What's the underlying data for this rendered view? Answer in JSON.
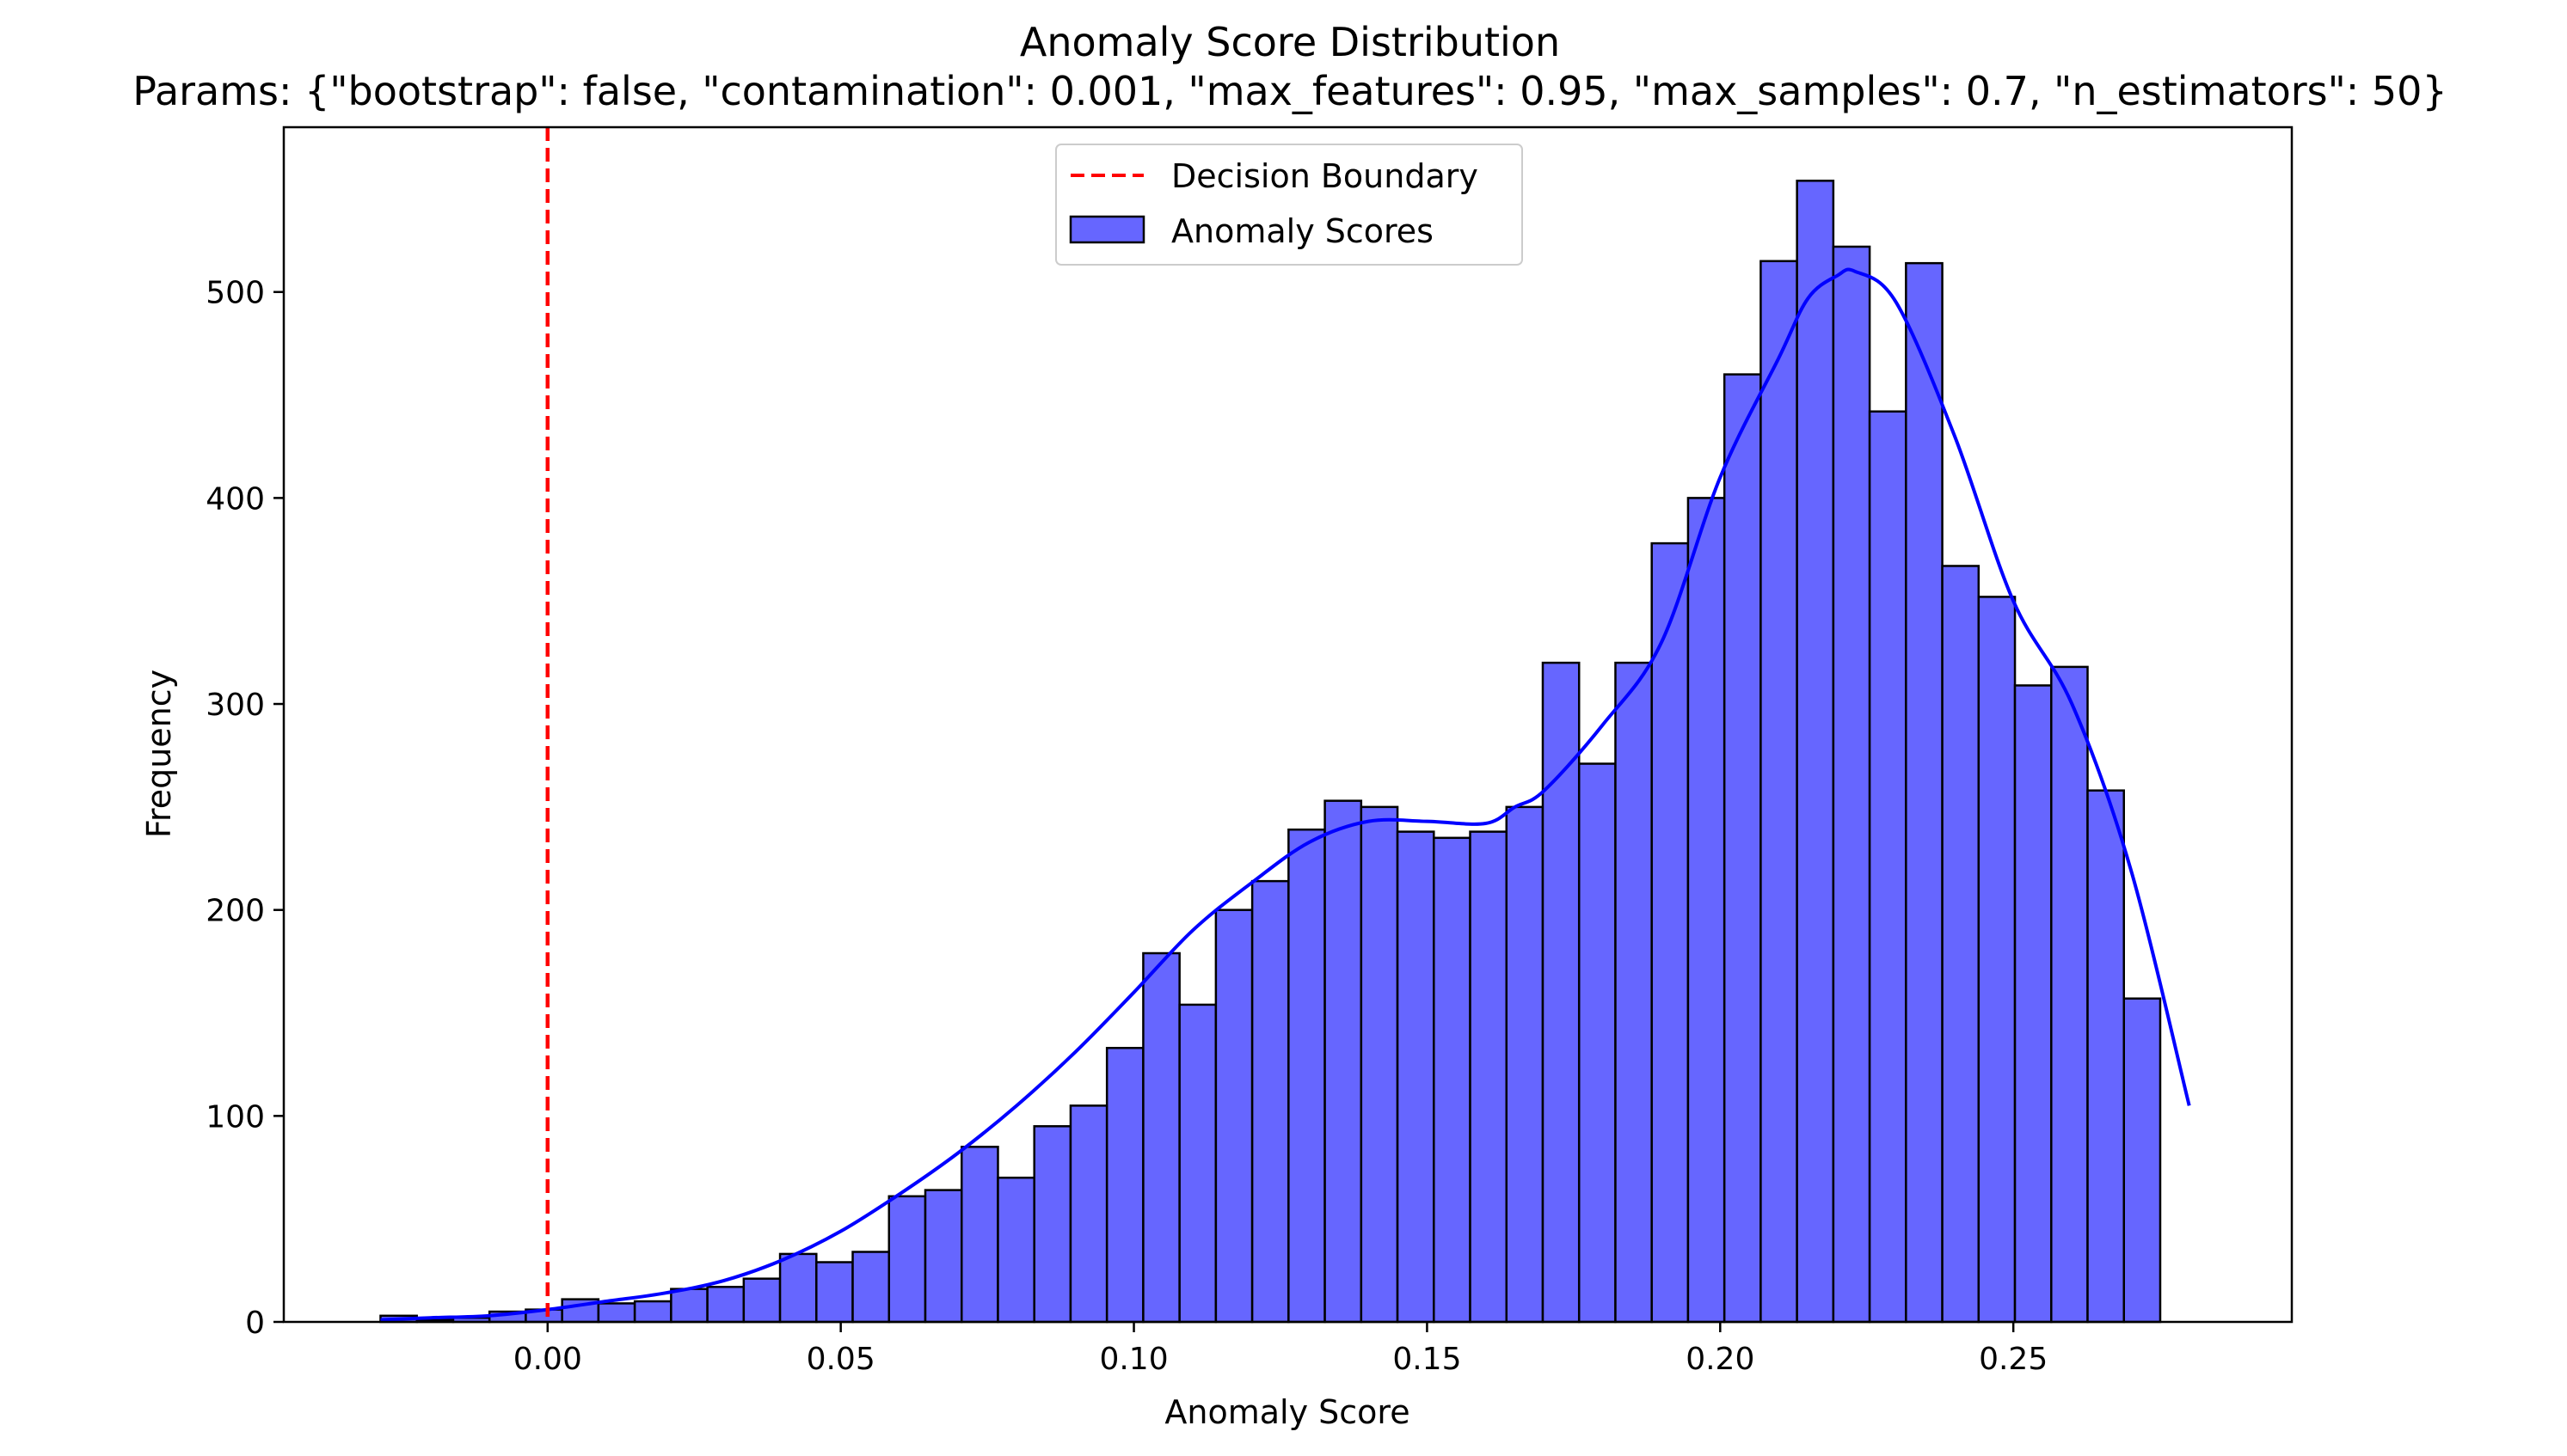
{
  "chart_data": {
    "type": "bar",
    "title": "Anomaly Score Distribution",
    "subtitle": "Params: {\"bootstrap\": false, \"contamination\": 0.001, \"max_features\": 0.95, \"max_samples\": 0.7, \"n_estimators\": 50}",
    "xlabel": "Anomaly Score",
    "ylabel": "Frequency",
    "xlim": [
      -0.045,
      0.2975
    ],
    "ylim": [
      0,
      580
    ],
    "x_ticks": [
      0.0,
      0.05,
      0.1,
      0.15,
      0.2,
      0.25
    ],
    "x_tick_labels": [
      "0.00",
      "0.05",
      "0.10",
      "0.15",
      "0.20",
      "0.25"
    ],
    "y_ticks": [
      0,
      100,
      200,
      300,
      400,
      500
    ],
    "y_tick_labels": [
      "0",
      "100",
      "200",
      "300",
      "400",
      "500"
    ],
    "grid": false,
    "legend_position": "upper center",
    "bins": {
      "start": -0.0285,
      "width": 0.006195,
      "counts": [
        3,
        1,
        2,
        5,
        6,
        11,
        9,
        10,
        16,
        17,
        21,
        33,
        29,
        34,
        61,
        64,
        85,
        70,
        95,
        105,
        133,
        179,
        154,
        200,
        214,
        239,
        253,
        250,
        238,
        235,
        238,
        250,
        320,
        271,
        320,
        378,
        400,
        460,
        515,
        554,
        522,
        442,
        514,
        367,
        352,
        309,
        318,
        258,
        157
      ]
    },
    "kde": {
      "x": [
        -0.0285,
        -0.02,
        -0.01,
        0.0,
        0.01,
        0.02,
        0.03,
        0.04,
        0.05,
        0.06,
        0.07,
        0.08,
        0.09,
        0.1,
        0.11,
        0.12,
        0.13,
        0.14,
        0.15,
        0.16,
        0.165,
        0.17,
        0.18,
        0.19,
        0.2,
        0.21,
        0.215,
        0.22,
        0.223,
        0.23,
        0.24,
        0.25,
        0.26,
        0.27,
        0.28
      ],
      "y": [
        1,
        2,
        3,
        6,
        10,
        14,
        20,
        30,
        44,
        62,
        82,
        105,
        131,
        160,
        190,
        213,
        233,
        243,
        243,
        242,
        250,
        258,
        290,
        330,
        410,
        468,
        497,
        508,
        510,
        495,
        430,
        350,
        300,
        220,
        105
      ]
    },
    "decision_boundary": 0.0,
    "series": [
      {
        "name": "Decision Boundary",
        "color": "#ff0000",
        "style": "dashed"
      },
      {
        "name": "Anomaly Scores",
        "color": "#6666ff",
        "kde_color": "#0000ff",
        "edge_color": "#000000"
      }
    ]
  }
}
